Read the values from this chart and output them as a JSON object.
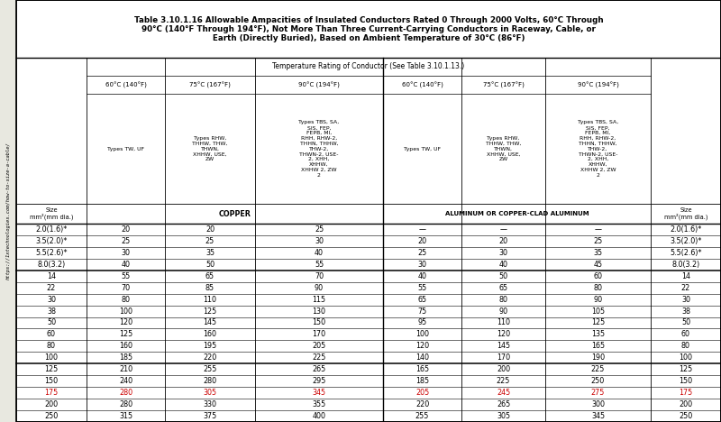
{
  "title": "Table 3.10.1.16 Allowable Ampacities of Insulated Conductors Rated 0 Through 2000 Volts, 60°C Through\n90°C (140°F Through 194°F), Not More Than Three Current-Carrying Conductors in Raceway, Cable, or\nEarth (Directly Buried), Based on Ambient Temperature of 30°C (86°F)",
  "temp_header": "Temperature Rating of Conductor (See Table 3.10.1.13.)",
  "copper_label": "COPPER",
  "aluminum_label": "ALUMINUM OR COPPER-CLAD ALUMINUM",
  "temp_labels": [
    "60°C (140°F)",
    "75°C (167°F)",
    "90°C (194°F)",
    "60°C (140°F)",
    "75°C (167°F)",
    "90°C (194°F)"
  ],
  "type_c1": "Types TW, UF",
  "type_c2": "Types RHW,\nTHHW, THW,\nTHWN,\nXHHW, USE,\nZW",
  "type_c3": "Types TBS, SA,\nSIS, FEP,\nFEPB, MI,\nRHH, RHW-2,\nTHHN, THHW,\nTHW-2,\nTHWN-2, USE-\n2, XHH,\nXHHW,\nXHHW 2, ZW\n2",
  "type_c4": "Types TW, UF",
  "type_c5": "Types RHW,\nTHHW, THW,\nTHWN,\nXHHW, USE,\nZW",
  "type_c6": "Types TBS, SA,\nSIS, FEP,\nFEPB, MI,\nRHH, RHW-2,\nTHHN, THHW,\nTHW-2,\nTHWN-2, USE-\n2, XHH,\nXHHW,\nXHHW 2, ZW\n2",
  "size_header": "Size\nmm²(mm dia.)",
  "rows": [
    {
      "size": "2.0(1.6)*",
      "c1": "20",
      "c2": "20",
      "c3": "25",
      "c4": "—",
      "c5": "—",
      "c6": "—",
      "red": false
    },
    {
      "size": "3.5(2.0)*",
      "c1": "25",
      "c2": "25",
      "c3": "30",
      "c4": "20",
      "c5": "20",
      "c6": "25",
      "red": false
    },
    {
      "size": "5.5(2.6)*",
      "c1": "30",
      "c2": "35",
      "c3": "40",
      "c4": "25",
      "c5": "30",
      "c6": "35",
      "red": false
    },
    {
      "size": "8.0(3.2)",
      "c1": "40",
      "c2": "50",
      "c3": "55",
      "c4": "30",
      "c5": "40",
      "c6": "45",
      "red": false
    },
    {
      "size": "14",
      "c1": "55",
      "c2": "65",
      "c3": "70",
      "c4": "40",
      "c5": "50",
      "c6": "60",
      "red": false
    },
    {
      "size": "22",
      "c1": "70",
      "c2": "85",
      "c3": "90",
      "c4": "55",
      "c5": "65",
      "c6": "80",
      "red": false
    },
    {
      "size": "30",
      "c1": "80",
      "c2": "110",
      "c3": "115",
      "c4": "65",
      "c5": "80",
      "c6": "90",
      "red": false
    },
    {
      "size": "38",
      "c1": "100",
      "c2": "125",
      "c3": "130",
      "c4": "75",
      "c5": "90",
      "c6": "105",
      "red": false
    },
    {
      "size": "50",
      "c1": "120",
      "c2": "145",
      "c3": "150",
      "c4": "95",
      "c5": "110",
      "c6": "125",
      "red": false
    },
    {
      "size": "60",
      "c1": "125",
      "c2": "160",
      "c3": "170",
      "c4": "100",
      "c5": "120",
      "c6": "135",
      "red": false
    },
    {
      "size": "80",
      "c1": "160",
      "c2": "195",
      "c3": "205",
      "c4": "120",
      "c5": "145",
      "c6": "165",
      "red": false
    },
    {
      "size": "100",
      "c1": "185",
      "c2": "220",
      "c3": "225",
      "c4": "140",
      "c5": "170",
      "c6": "190",
      "red": false
    },
    {
      "size": "125",
      "c1": "210",
      "c2": "255",
      "c3": "265",
      "c4": "165",
      "c5": "200",
      "c6": "225",
      "red": false
    },
    {
      "size": "150",
      "c1": "240",
      "c2": "280",
      "c3": "295",
      "c4": "185",
      "c5": "225",
      "c6": "250",
      "red": false
    },
    {
      "size": "175",
      "c1": "280",
      "c2": "305",
      "c3": "345",
      "c4": "205",
      "c5": "245",
      "c6": "275",
      "red": true
    },
    {
      "size": "200",
      "c1": "280",
      "c2": "330",
      "c3": "355",
      "c4": "220",
      "c5": "265",
      "c6": "300",
      "red": false
    },
    {
      "size": "250",
      "c1": "315",
      "c2": "375",
      "c3": "400",
      "c4": "255",
      "c5": "305",
      "c6": "345",
      "red": false
    }
  ],
  "thick_after_rows": [
    3,
    11
  ],
  "sidebar_text": "https://1xtechnologies.com/how-to-size-a-cable/",
  "bg_color": "#e8e8e0",
  "table_bg": "#ffffff",
  "red_color": "#cc0000",
  "black": "#000000"
}
